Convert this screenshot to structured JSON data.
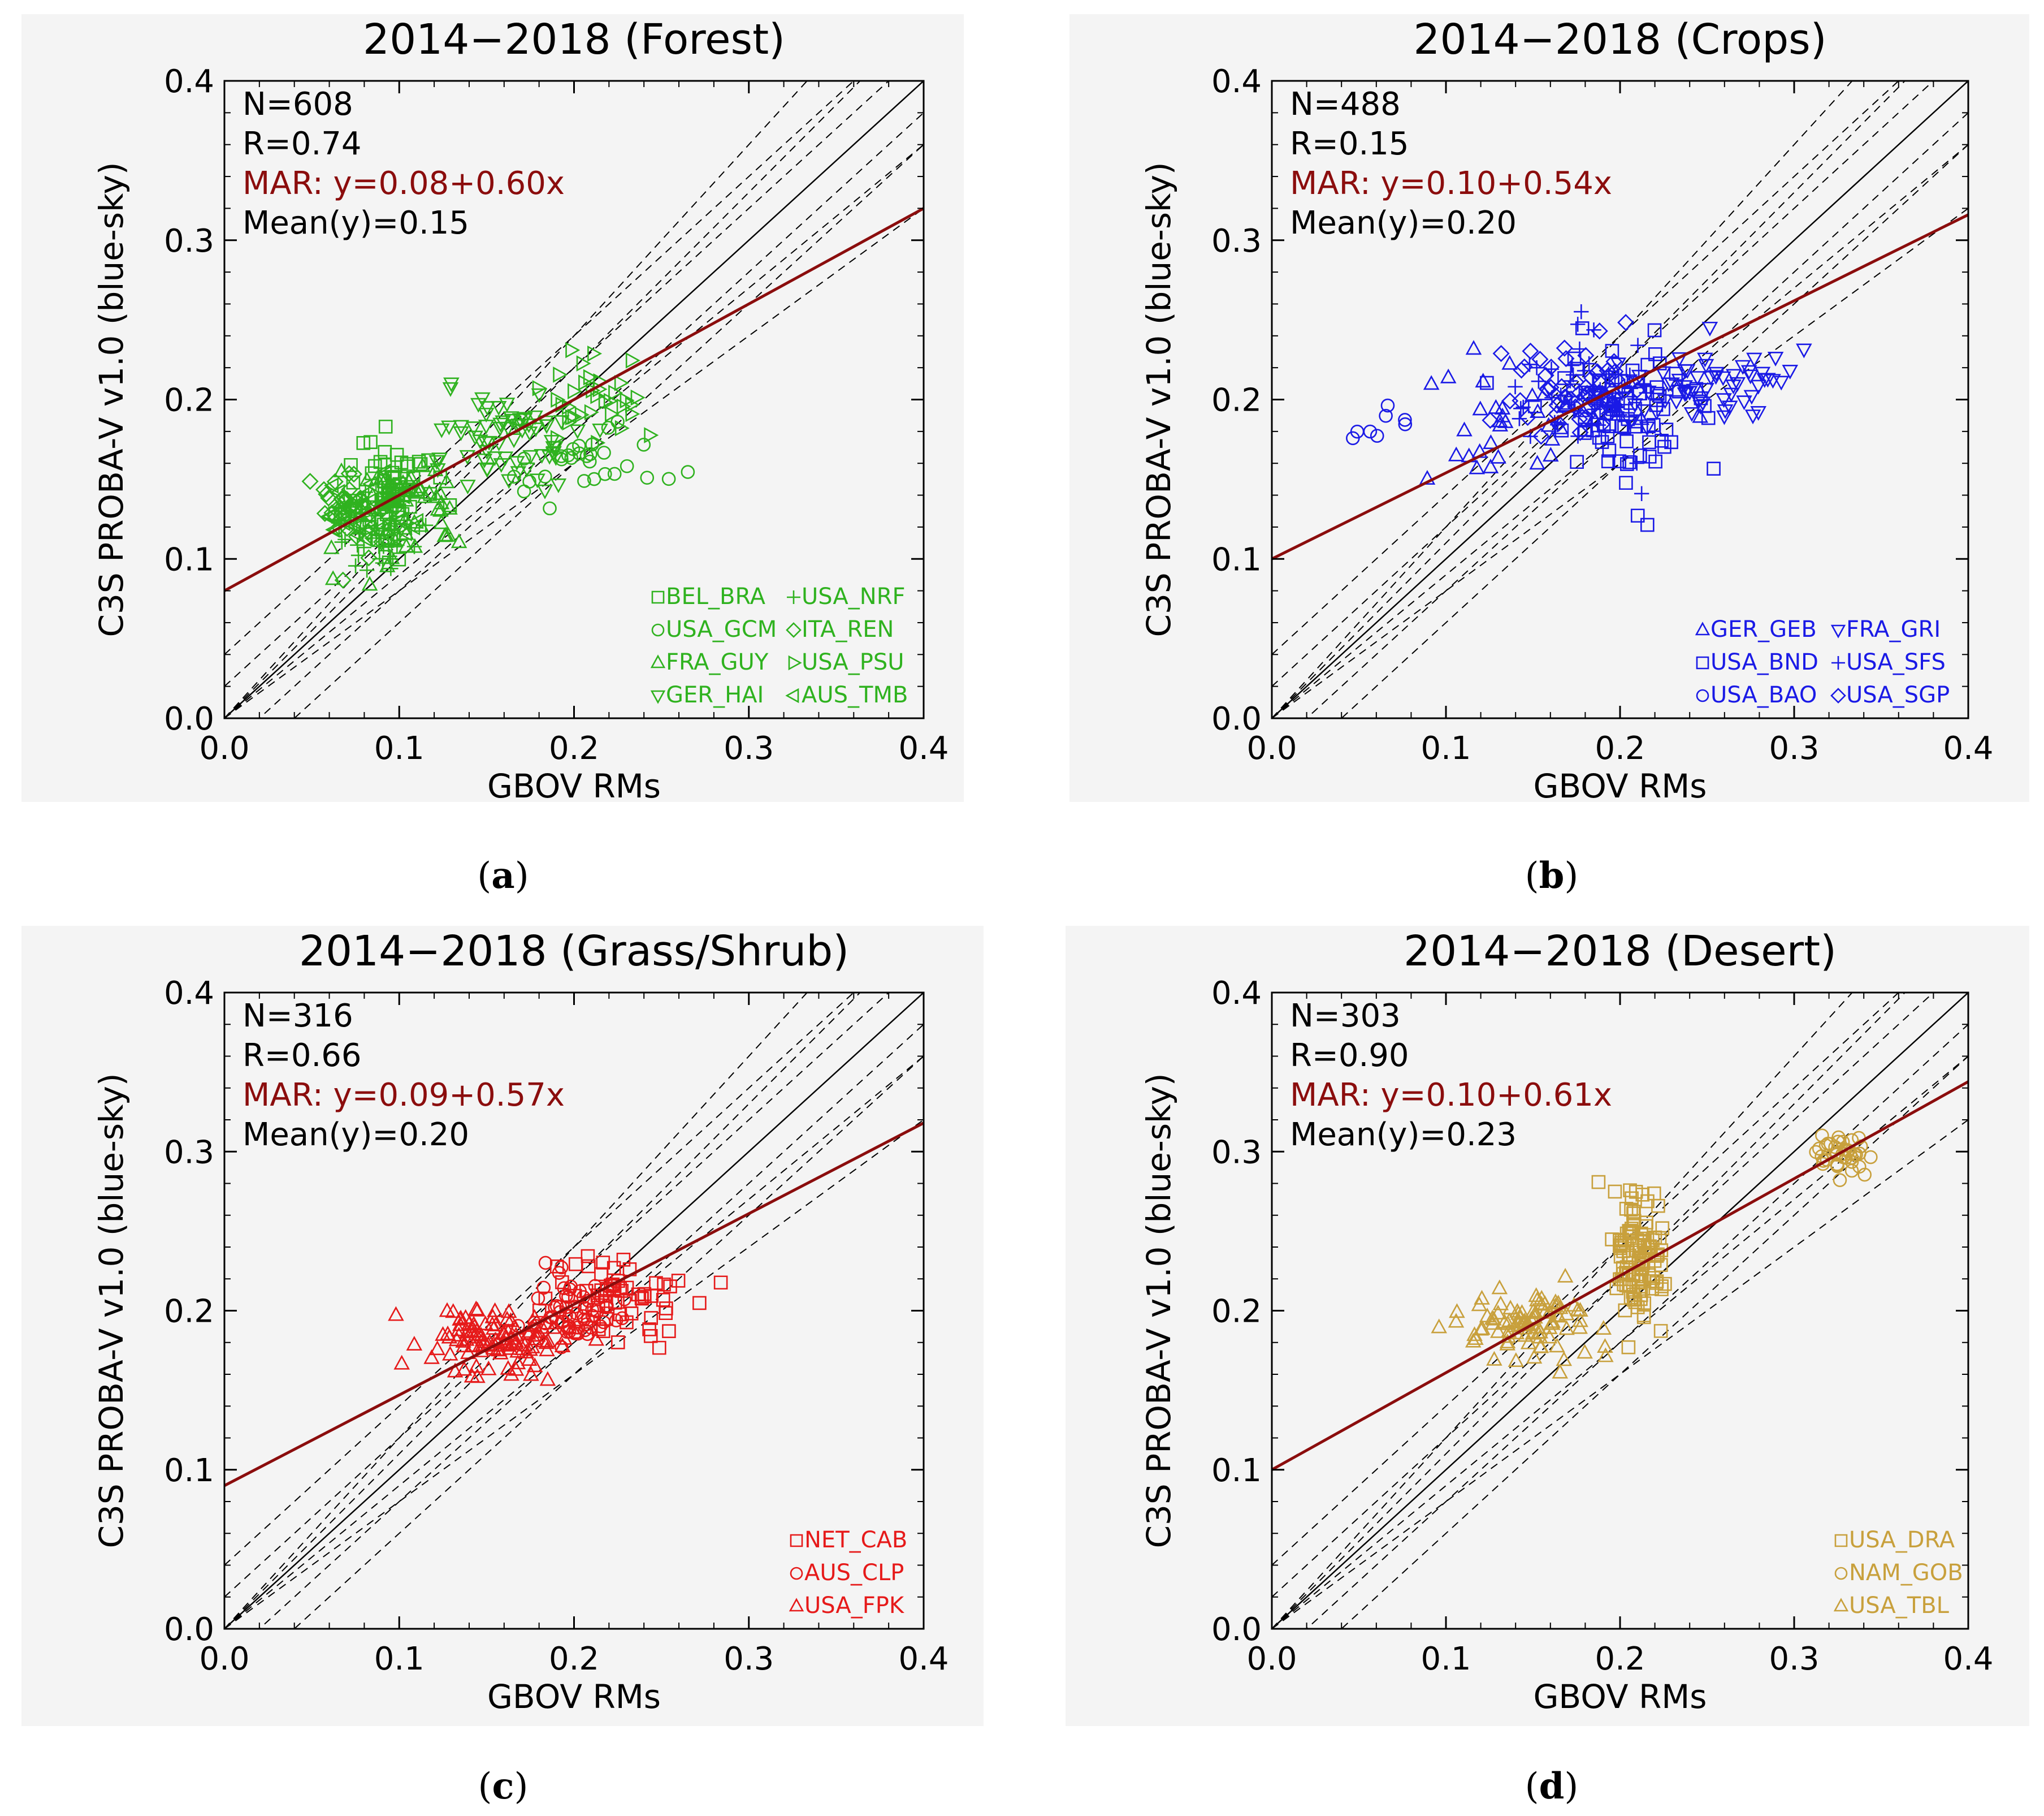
{
  "figure": {
    "axis_labels": {
      "x": "GBOV RMs",
      "y": "C3S PROBA-V v1.0 (blue-sky)"
    },
    "colors": {
      "regression": "#8b0d0d",
      "forest": "#2fb21f",
      "crops": "#1a1ae6",
      "grass": "#e61a1a",
      "desert": "#c8a03c"
    }
  },
  "chart_data": [
    {
      "type": "scatter",
      "title": "2014−2018 (Forest)",
      "caption": "a",
      "color": "#2fb21f",
      "xlim": [
        0.0,
        0.4
      ],
      "ylim": [
        0.0,
        0.4
      ],
      "x_ticks": [
        "0.0",
        "0.1",
        "0.2",
        "0.3",
        "0.4"
      ],
      "y_ticks": [
        "0.0",
        "0.1",
        "0.2",
        "0.3",
        "0.4"
      ],
      "stats": {
        "n": "N=608",
        "r": "R=0.74",
        "mar": "MAR: y=0.08+0.60x",
        "mean": "Mean(y)=0.15"
      },
      "regression": {
        "intercept": 0.08,
        "slope": 0.6
      },
      "legend": [
        {
          "label": "BEL_BRA",
          "marker": "square"
        },
        {
          "label": "USA_NRF",
          "marker": "plus"
        },
        {
          "label": "USA_GCM",
          "marker": "circle"
        },
        {
          "label": "ITA_REN",
          "marker": "diamond"
        },
        {
          "label": "FRA_GUY",
          "marker": "triangle-up"
        },
        {
          "label": "USA_PSU",
          "marker": "triangle-right"
        },
        {
          "label": "GER_HAI",
          "marker": "triangle-down"
        },
        {
          "label": "AUS_TMB",
          "marker": "triangle-left"
        }
      ],
      "clusters": [
        {
          "marker": "square",
          "cx": 0.095,
          "cy": 0.145,
          "sx": 0.012,
          "sy": 0.018,
          "n": 60
        },
        {
          "marker": "plus",
          "cx": 0.085,
          "cy": 0.115,
          "sx": 0.012,
          "sy": 0.012,
          "n": 35
        },
        {
          "marker": "circle",
          "cx": 0.21,
          "cy": 0.165,
          "sx": 0.02,
          "sy": 0.012,
          "n": 30
        },
        {
          "marker": "diamond",
          "cx": 0.075,
          "cy": 0.13,
          "sx": 0.012,
          "sy": 0.014,
          "n": 40
        },
        {
          "marker": "triangle-up",
          "cx": 0.1,
          "cy": 0.13,
          "sx": 0.02,
          "sy": 0.015,
          "n": 60
        },
        {
          "marker": "triangle-right",
          "cx": 0.215,
          "cy": 0.2,
          "sx": 0.015,
          "sy": 0.015,
          "n": 35
        },
        {
          "marker": "triangle-down",
          "cx": 0.155,
          "cy": 0.175,
          "sx": 0.022,
          "sy": 0.015,
          "n": 70
        },
        {
          "marker": "triangle-left",
          "cx": 0.085,
          "cy": 0.125,
          "sx": 0.014,
          "sy": 0.012,
          "n": 40
        }
      ]
    },
    {
      "type": "scatter",
      "title": "2014−2018 (Crops)",
      "caption": "b",
      "color": "#1a1ae6",
      "xlim": [
        0.0,
        0.4
      ],
      "ylim": [
        0.0,
        0.4
      ],
      "x_ticks": [
        "0.0",
        "0.1",
        "0.2",
        "0.3",
        "0.4"
      ],
      "y_ticks": [
        "0.0",
        "0.1",
        "0.2",
        "0.3",
        "0.4"
      ],
      "stats": {
        "n": "N=488",
        "r": "R=0.15",
        "mar": "MAR: y=0.10+0.54x",
        "mean": "Mean(y)=0.20"
      },
      "regression": {
        "intercept": 0.1,
        "slope": 0.54
      },
      "legend": [
        {
          "label": "GER_GEB",
          "marker": "triangle-up"
        },
        {
          "label": "FRA_GRI",
          "marker": "triangle-down"
        },
        {
          "label": "USA_BND",
          "marker": "square"
        },
        {
          "label": "USA_SFS",
          "marker": "plus"
        },
        {
          "label": "USA_BAO",
          "marker": "circle"
        },
        {
          "label": "USA_SGP",
          "marker": "diamond"
        }
      ],
      "clusters": [
        {
          "marker": "square",
          "cx": 0.2,
          "cy": 0.195,
          "sx": 0.022,
          "sy": 0.022,
          "n": 80
        },
        {
          "marker": "plus",
          "cx": 0.18,
          "cy": 0.205,
          "sx": 0.022,
          "sy": 0.02,
          "n": 50
        },
        {
          "marker": "circle",
          "cx": 0.065,
          "cy": 0.185,
          "sx": 0.012,
          "sy": 0.006,
          "n": 8
        },
        {
          "marker": "diamond",
          "cx": 0.17,
          "cy": 0.21,
          "sx": 0.018,
          "sy": 0.015,
          "n": 60
        },
        {
          "marker": "triangle-up",
          "cx": 0.15,
          "cy": 0.19,
          "sx": 0.03,
          "sy": 0.02,
          "n": 40
        },
        {
          "marker": "triangle-down",
          "cx": 0.25,
          "cy": 0.21,
          "sx": 0.03,
          "sy": 0.012,
          "n": 60
        }
      ]
    },
    {
      "type": "scatter",
      "title": "2014−2018 (Grass/Shrub)",
      "caption": "c",
      "color": "#e61a1a",
      "xlim": [
        0.0,
        0.4
      ],
      "ylim": [
        0.0,
        0.4
      ],
      "x_ticks": [
        "0.0",
        "0.1",
        "0.2",
        "0.3",
        "0.4"
      ],
      "y_ticks": [
        "0.0",
        "0.1",
        "0.2",
        "0.3",
        "0.4"
      ],
      "stats": {
        "n": "N=316",
        "r": "R=0.66",
        "mar": "MAR: y=0.09+0.57x",
        "mean": "Mean(y)=0.20"
      },
      "regression": {
        "intercept": 0.09,
        "slope": 0.57
      },
      "legend": [
        {
          "label": "NET_CAB",
          "marker": "square"
        },
        {
          "label": "AUS_CLP",
          "marker": "circle"
        },
        {
          "label": "USA_FPK",
          "marker": "triangle-up"
        }
      ],
      "clusters": [
        {
          "marker": "square",
          "cx": 0.225,
          "cy": 0.205,
          "sx": 0.02,
          "sy": 0.015,
          "n": 60
        },
        {
          "marker": "circle",
          "cx": 0.2,
          "cy": 0.2,
          "sx": 0.012,
          "sy": 0.012,
          "n": 60
        },
        {
          "marker": "triangle-up",
          "cx": 0.155,
          "cy": 0.18,
          "sx": 0.02,
          "sy": 0.012,
          "n": 110
        }
      ]
    },
    {
      "type": "scatter",
      "title": "2014−2018 (Desert)",
      "caption": "d",
      "color": "#c8a03c",
      "xlim": [
        0.0,
        0.4
      ],
      "ylim": [
        0.0,
        0.4
      ],
      "x_ticks": [
        "0.0",
        "0.1",
        "0.2",
        "0.3",
        "0.4"
      ],
      "y_ticks": [
        "0.0",
        "0.1",
        "0.2",
        "0.3",
        "0.4"
      ],
      "stats": {
        "n": "N=303",
        "r": "R=0.90",
        "mar": "MAR: y=0.10+0.61x",
        "mean": "Mean(y)=0.23"
      },
      "regression": {
        "intercept": 0.1,
        "slope": 0.61
      },
      "legend": [
        {
          "label": "USA_DRA",
          "marker": "square"
        },
        {
          "label": "NAM_GOB",
          "marker": "circle"
        },
        {
          "label": "USA_TBL",
          "marker": "triangle-up"
        }
      ],
      "clusters": [
        {
          "marker": "square",
          "cx": 0.21,
          "cy": 0.235,
          "sx": 0.008,
          "sy": 0.02,
          "n": 110
        },
        {
          "marker": "circle",
          "cx": 0.33,
          "cy": 0.298,
          "sx": 0.008,
          "sy": 0.006,
          "n": 40
        },
        {
          "marker": "triangle-up",
          "cx": 0.15,
          "cy": 0.19,
          "sx": 0.02,
          "sy": 0.01,
          "n": 90
        }
      ]
    }
  ]
}
